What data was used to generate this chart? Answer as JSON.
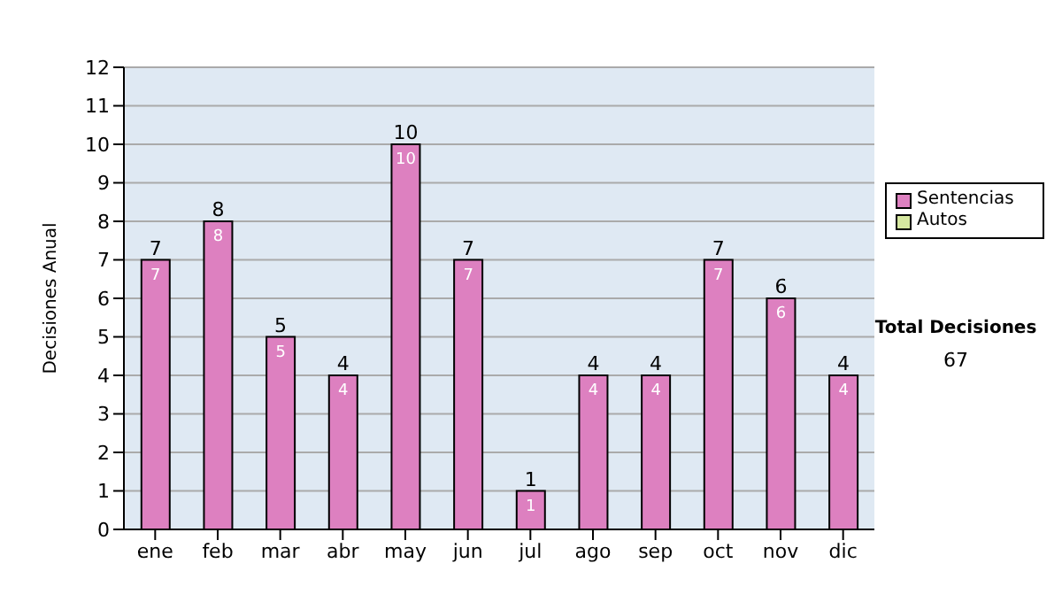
{
  "chart_data": {
    "type": "bar",
    "ylabel": "Decisiones Anual",
    "categories": [
      "ene",
      "feb",
      "mar",
      "abr",
      "may",
      "jun",
      "jul",
      "ago",
      "sep",
      "oct",
      "nov",
      "dic"
    ],
    "series": [
      {
        "name": "Sentencias",
        "color": "#dd80c0",
        "values": [
          7,
          8,
          5,
          4,
          10,
          7,
          1,
          4,
          4,
          7,
          6,
          4
        ],
        "value_labels": [
          "7",
          "8",
          "5",
          "4",
          "10",
          "7",
          "1",
          "4",
          "4",
          "7",
          "6",
          "4"
        ]
      },
      {
        "name": "Autos",
        "color": "#d6e8a0",
        "values": [
          0,
          0,
          0,
          0,
          0,
          0,
          0,
          0,
          0,
          0,
          0,
          0
        ],
        "value_labels": [
          null,
          null,
          null,
          null,
          null,
          null,
          null,
          null,
          null,
          null,
          null,
          null
        ]
      }
    ],
    "stacked": true,
    "totals": [
      "7",
      "8",
      "5",
      "4",
      "10",
      "7",
      "1",
      "4",
      "4",
      "7",
      "6",
      "4"
    ],
    "ylim": [
      0,
      12
    ],
    "yticks": [
      0,
      1,
      2,
      3,
      4,
      5,
      6,
      7,
      8,
      9,
      10,
      11,
      12
    ],
    "grid": "y",
    "legend": "right",
    "annotations": [
      "Total Decisiones",
      "67"
    ]
  }
}
